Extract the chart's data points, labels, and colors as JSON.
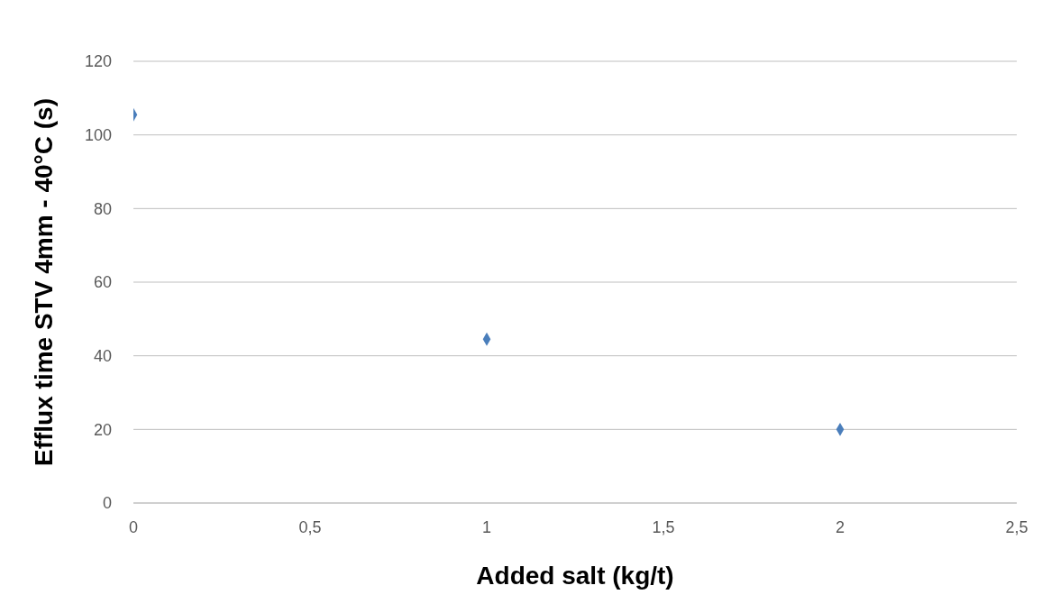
{
  "chart_data": {
    "type": "scatter",
    "xlabel": "Added salt (kg/t)",
    "ylabel": "Efflux time  STV 4mm - 40°C (s)",
    "x": [
      0,
      1,
      2
    ],
    "series": [
      {
        "color": "#4a7ebb",
        "values": [
          105.5,
          44.5,
          20
        ]
      }
    ],
    "xlim": [
      0,
      2.5
    ],
    "xticks": [
      0,
      {
        "value": 0.5,
        "label": "0,5"
      },
      1,
      {
        "value": 1.5,
        "label": "1,5"
      },
      2,
      {
        "value": 2.5,
        "label": "2,5"
      }
    ],
    "ylim": [
      0,
      120
    ],
    "yticks": [
      0,
      20,
      40,
      60,
      80,
      100,
      120
    ],
    "grid": "y",
    "marker": "diamond",
    "legend": false
  }
}
